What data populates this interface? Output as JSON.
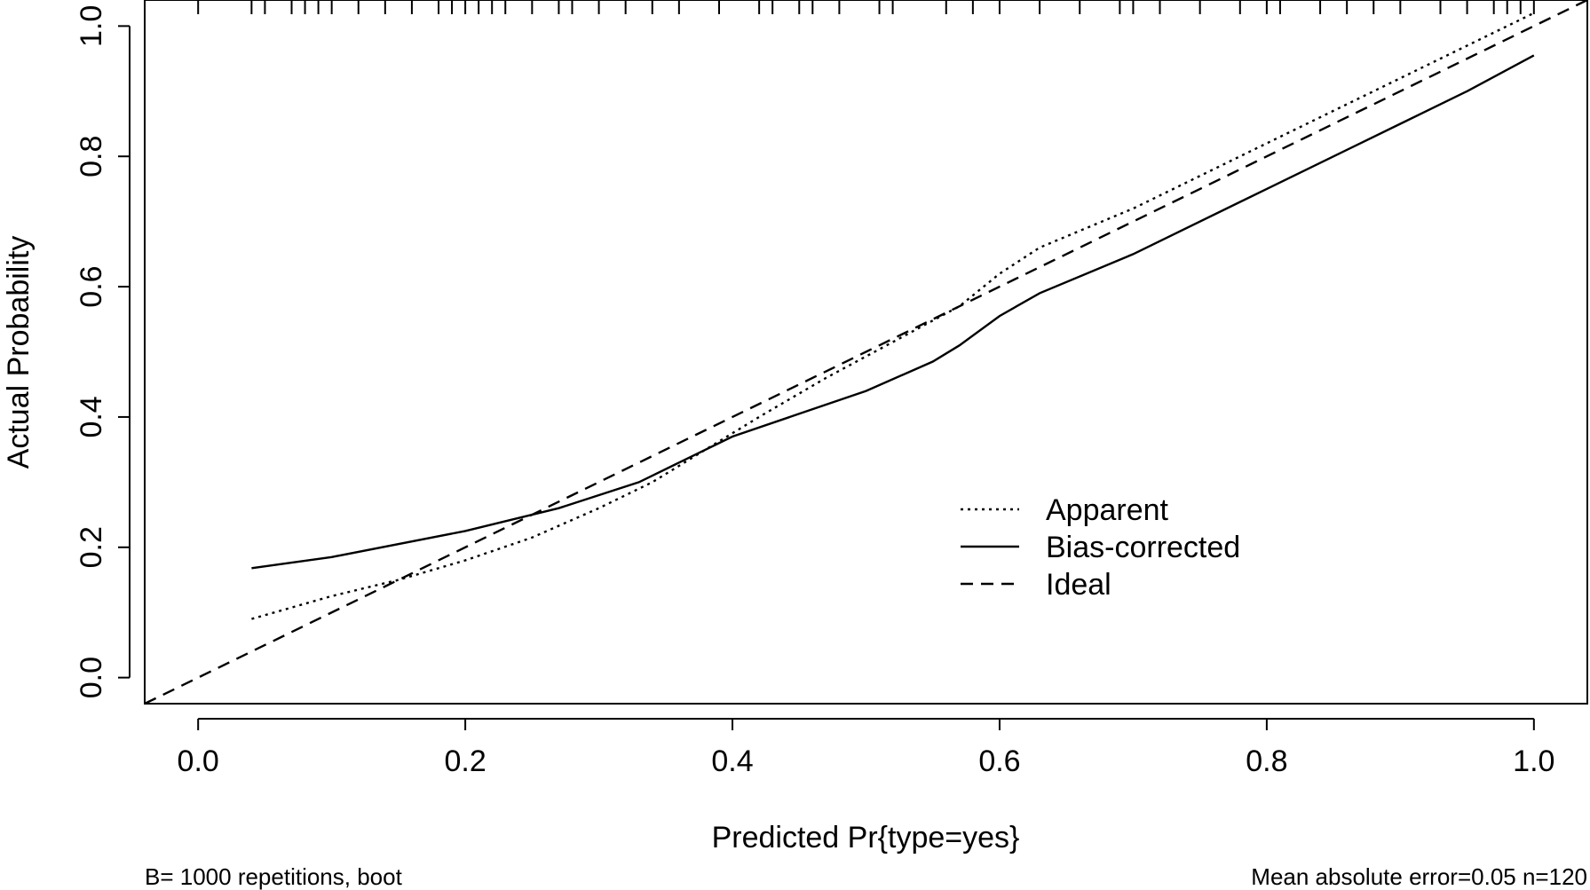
{
  "chart_data": {
    "type": "line",
    "xlabel": "Predicted Pr{type=yes}",
    "ylabel": "Actual Probability",
    "xlim": [
      -0.04,
      1.04
    ],
    "ylim": [
      -0.04,
      1.04
    ],
    "x_ticks": [
      0.0,
      0.2,
      0.4,
      0.6,
      0.8,
      1.0
    ],
    "y_ticks": [
      0.0,
      0.2,
      0.4,
      0.6,
      0.8,
      1.0
    ],
    "x_tick_labels": [
      "0.0",
      "0.2",
      "0.4",
      "0.6",
      "0.8",
      "1.0"
    ],
    "y_tick_labels": [
      "0.0",
      "0.2",
      "0.4",
      "0.6",
      "0.8",
      "1.0"
    ],
    "grid": false,
    "legend_position": "lower-right",
    "series": [
      {
        "name": "Apparent",
        "style": "dotted",
        "x": [
          0.04,
          0.1,
          0.15,
          0.2,
          0.25,
          0.3,
          0.34,
          0.38,
          0.42,
          0.47,
          0.52,
          0.57,
          0.6,
          0.63,
          0.7,
          0.8,
          0.9,
          0.95,
          1.0
        ],
        "y": [
          0.09,
          0.125,
          0.15,
          0.18,
          0.215,
          0.26,
          0.3,
          0.35,
          0.4,
          0.46,
          0.515,
          0.57,
          0.62,
          0.66,
          0.72,
          0.82,
          0.92,
          0.97,
          1.02
        ]
      },
      {
        "name": "Bias-corrected",
        "style": "solid",
        "x": [
          0.04,
          0.1,
          0.2,
          0.27,
          0.33,
          0.36,
          0.4,
          0.45,
          0.5,
          0.55,
          0.57,
          0.6,
          0.63,
          0.7,
          0.8,
          0.9,
          0.95,
          1.0
        ],
        "y": [
          0.168,
          0.185,
          0.225,
          0.26,
          0.3,
          0.33,
          0.37,
          0.405,
          0.44,
          0.485,
          0.51,
          0.555,
          0.59,
          0.65,
          0.75,
          0.85,
          0.9,
          0.955
        ]
      },
      {
        "name": "Ideal",
        "style": "dashed",
        "x": [
          -0.04,
          1.04
        ],
        "y": [
          -0.04,
          1.04
        ]
      }
    ],
    "rug_x": [
      0.0,
      0.04,
      0.05,
      0.07,
      0.08,
      0.09,
      0.1,
      0.12,
      0.14,
      0.16,
      0.18,
      0.19,
      0.2,
      0.21,
      0.22,
      0.23,
      0.25,
      0.27,
      0.28,
      0.3,
      0.32,
      0.34,
      0.36,
      0.39,
      0.42,
      0.43,
      0.45,
      0.46,
      0.48,
      0.51,
      0.52,
      0.56,
      0.58,
      0.6,
      0.63,
      0.66,
      0.69,
      0.7,
      0.72,
      0.75,
      0.78,
      0.8,
      0.81,
      0.84,
      0.86,
      0.88,
      0.9,
      0.93,
      0.95,
      0.97,
      0.98,
      0.99,
      1.0
    ],
    "annotations": {
      "bottom_left": "B= 1000 repetitions, boot",
      "bottom_right": "Mean absolute error=0.05 n=120"
    }
  }
}
